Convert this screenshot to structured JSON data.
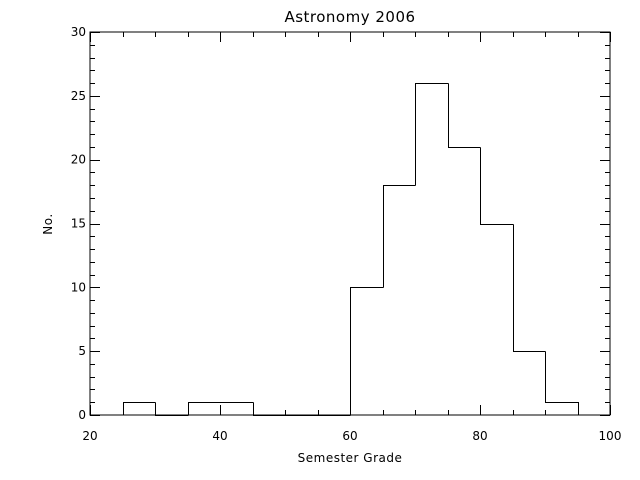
{
  "chart_data": {
    "type": "bar",
    "style": "histogram-step",
    "title": "Astronomy 2006",
    "xlabel": "Semester Grade",
    "ylabel": "No.",
    "xlim": [
      20,
      100
    ],
    "ylim": [
      0,
      30
    ],
    "x_ticks": [
      20,
      40,
      60,
      80,
      100
    ],
    "y_ticks": [
      0,
      5,
      10,
      15,
      20,
      25,
      30
    ],
    "x_minor_step": 5,
    "y_minor_step": 1,
    "bin_width": 5,
    "bins": [
      {
        "start": 25,
        "end": 30,
        "count": 1
      },
      {
        "start": 30,
        "end": 35,
        "count": 0
      },
      {
        "start": 35,
        "end": 40,
        "count": 1
      },
      {
        "start": 40,
        "end": 45,
        "count": 1
      },
      {
        "start": 45,
        "end": 50,
        "count": 0
      },
      {
        "start": 50,
        "end": 55,
        "count": 0
      },
      {
        "start": 55,
        "end": 60,
        "count": 0
      },
      {
        "start": 60,
        "end": 65,
        "count": 10
      },
      {
        "start": 65,
        "end": 70,
        "count": 18
      },
      {
        "start": 70,
        "end": 75,
        "count": 26
      },
      {
        "start": 75,
        "end": 80,
        "count": 21
      },
      {
        "start": 80,
        "end": 85,
        "count": 15
      },
      {
        "start": 85,
        "end": 90,
        "count": 5
      },
      {
        "start": 90,
        "end": 95,
        "count": 1
      }
    ],
    "grid": false,
    "legend": "none",
    "colors": {
      "line": "#000000",
      "background": "#ffffff"
    }
  }
}
